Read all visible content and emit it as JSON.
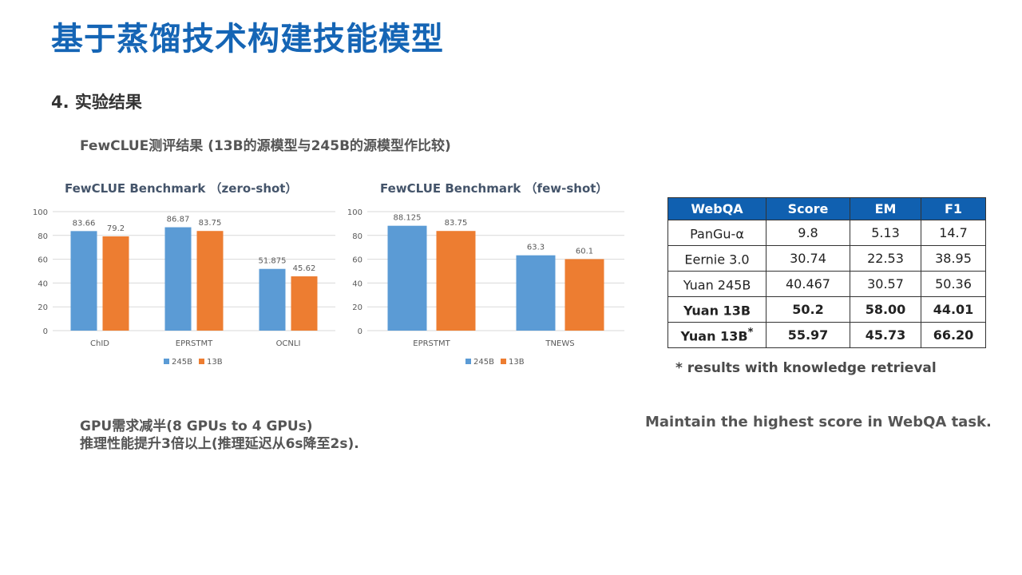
{
  "slide": {
    "title": "基于蒸馏技术构建技能模型",
    "section": "4.  实验结果",
    "subheading": "FewCLUE测评结果 (13B的源模型与245B的源模型作比较)"
  },
  "colors": {
    "series_245B": "#5b9bd5",
    "series_13B": "#ed7d31",
    "table_header": "#1060b0",
    "title": "#1565b5"
  },
  "chart_data": [
    {
      "type": "bar",
      "title": "FewCLUE Benchmark （zero-shot）",
      "categories": [
        "ChID",
        "EPRSTMT",
        "OCNLI"
      ],
      "series": [
        {
          "name": "245B",
          "values": [
            83.66,
            86.87,
            51.875
          ],
          "labels": [
            "83.66",
            "86.87",
            "51.875"
          ]
        },
        {
          "name": "13B",
          "values": [
            79.2,
            83.75,
            45.62
          ],
          "labels": [
            "79.2",
            "83.75",
            "45.62"
          ]
        }
      ],
      "ylim": [
        0,
        100
      ],
      "yticks": [
        0,
        20,
        40,
        60,
        80,
        100
      ],
      "grid": true,
      "legend": "bottom"
    },
    {
      "type": "bar",
      "title": "FewCLUE Benchmark （few-shot）",
      "categories": [
        "EPRSTMT",
        "TNEWS"
      ],
      "series": [
        {
          "name": "245B",
          "values": [
            88.125,
            63.3
          ],
          "labels": [
            "88.125",
            "63.3"
          ]
        },
        {
          "name": "13B",
          "values": [
            83.75,
            60.1
          ],
          "labels": [
            "83.75",
            "60.1"
          ]
        }
      ],
      "ylim": [
        0,
        100
      ],
      "yticks": [
        0,
        20,
        40,
        60,
        80,
        100
      ],
      "grid": true,
      "legend": "bottom"
    }
  ],
  "table": {
    "headers": [
      "WebQA",
      "Score",
      "EM",
      "F1"
    ],
    "rows": [
      {
        "model": "PanGu-α",
        "sup": "",
        "bold": false,
        "score": "9.8",
        "em": "5.13",
        "f1": "14.7"
      },
      {
        "model": "Eernie 3.0",
        "sup": "",
        "bold": false,
        "score": "30.74",
        "em": "22.53",
        "f1": "38.95"
      },
      {
        "model": "Yuan 245B",
        "sup": "",
        "bold": false,
        "score": "40.467",
        "em": "30.57",
        "f1": "50.36"
      },
      {
        "model": "Yuan 13B",
        "sup": "",
        "bold": true,
        "score": "50.2",
        "em": "58.00",
        "f1": "44.01"
      },
      {
        "model": "Yuan 13B",
        "sup": "*",
        "bold": true,
        "score": "55.97",
        "em": "45.73",
        "f1": "66.20"
      }
    ]
  },
  "footnote": "* results with knowledge retrieval",
  "notes": {
    "left_line1": "GPU需求减半(8 GPUs to 4 GPUs)",
    "left_line2": "推理性能提升3倍以上(推理延迟从6s降至2s).",
    "right": "Maintain the highest score in WebQA task."
  }
}
